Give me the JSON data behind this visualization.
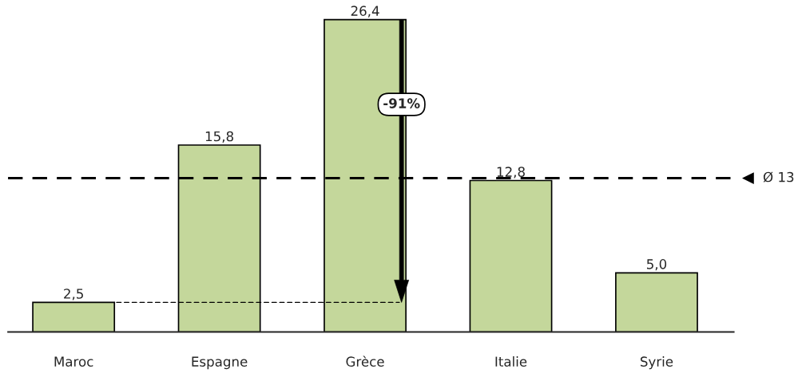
{
  "chart_data": {
    "type": "bar",
    "categories": [
      "Maroc",
      "Espagne",
      "Grèce",
      "Italie",
      "Syrie"
    ],
    "values": [
      2.5,
      15.8,
      26.4,
      12.8,
      5.0
    ],
    "value_labels": [
      "2,5",
      "15,8",
      "26,4",
      "12,8",
      "5,0"
    ],
    "color": "#c4d79b",
    "ref_lines": [
      {
        "axis": "y",
        "value": 13,
        "label": "Ø 13",
        "color": "#000000",
        "line_style": "dashed"
      }
    ],
    "annotations": [
      "-91%"
    ],
    "grid": false,
    "legend": false
  }
}
